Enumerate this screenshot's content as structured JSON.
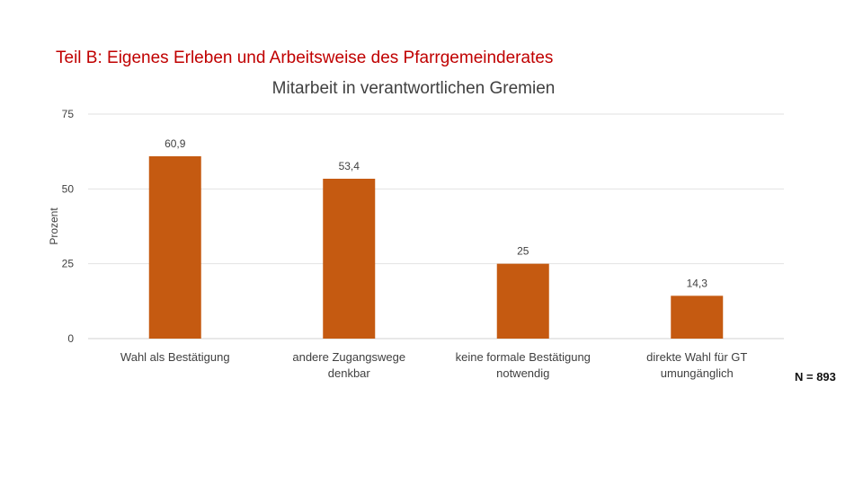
{
  "chart_data": {
    "type": "bar",
    "title": "Teil B: Eigenes Erleben und Arbeitsweise des Pfarrgemeinderates",
    "subtitle": "Mitarbeit in verantwortlichen Gremien",
    "ylabel": "Prozent",
    "xlabel": "",
    "ylim": [
      0,
      75
    ],
    "yticks": [
      0,
      25,
      50,
      75
    ],
    "grid": true,
    "categories": [
      [
        "Wahl als Bestätigung"
      ],
      [
        "andere Zugangswege",
        "denkbar"
      ],
      [
        "keine formale Bestätigung",
        "notwendig"
      ],
      [
        "direkte Wahl für GT",
        "umungänglich"
      ]
    ],
    "values": [
      60.9,
      53.4,
      25,
      14.3
    ],
    "data_labels": [
      "60,9",
      "53,4",
      "25",
      "14,3"
    ],
    "bar_color": "#C55A11"
  },
  "note": "N = 893"
}
